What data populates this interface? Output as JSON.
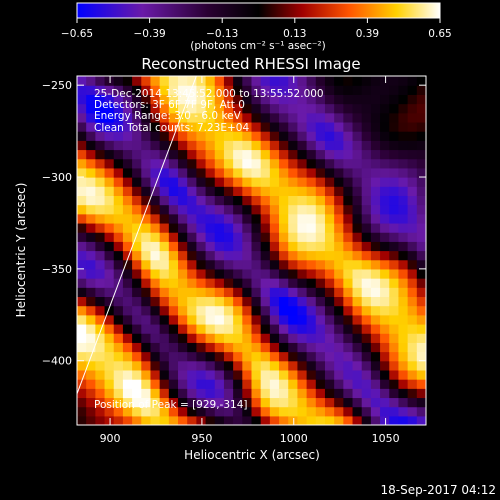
{
  "chart_data": {
    "type": "heatmap",
    "title": "Reconstructed RHESSI Image",
    "xlabel": "Heliocentric X (arcsec)",
    "ylabel": "Heliocentric Y (arcsec)",
    "xlim": [
      882,
      1072
    ],
    "ylim": [
      -435,
      -245
    ],
    "x_ticks": [
      900,
      950,
      1000,
      1050
    ],
    "y_ticks": [
      -250,
      -300,
      -350,
      -400
    ],
    "colorbar": {
      "range": [
        -0.65,
        0.65
      ],
      "tick_values": [
        -0.65,
        -0.39,
        -0.13,
        0.13,
        0.39,
        0.65
      ],
      "tick_labels": [
        "-0.65",
        "-0.39",
        "-0.13",
        "0.13",
        "0.39",
        "0.65"
      ],
      "units": "(photons cm⁻² s⁻¹ asec⁻²)",
      "colors": [
        "#0000ff",
        "#6a1aa8",
        "#2a0033",
        "#000000",
        "#a00000",
        "#ff5500",
        "#ffd000",
        "#ffffff"
      ]
    },
    "annotations": [
      "25-Dec-2014 13:45:52.000 to 13:55:52.000",
      "Detectors: 3F 6F 7F 9F, Att 0",
      "Energy Range: 3.0 - 6.0 keV",
      "Clean    Total counts: 7.23E+04"
    ],
    "peak_label": "Position of Peak = [929,-314]",
    "peak": [
      929,
      -314
    ],
    "limb_line": [
      [
        882,
        -418
      ],
      [
        947,
        -245
      ]
    ],
    "bands": [
      {
        "level": 0.62,
        "offset": -135,
        "width": 28
      },
      {
        "level": -0.55,
        "offset": -95,
        "width": 22
      },
      {
        "level": 0.6,
        "offset": -55,
        "width": 30
      },
      {
        "level": -0.62,
        "offset": -10,
        "width": 24
      },
      {
        "level": 0.58,
        "offset": 45,
        "width": 32
      },
      {
        "level": -0.5,
        "offset": 100,
        "width": 26
      }
    ]
  },
  "footer": {
    "timestamp": "18-Sep-2017 04:12"
  }
}
